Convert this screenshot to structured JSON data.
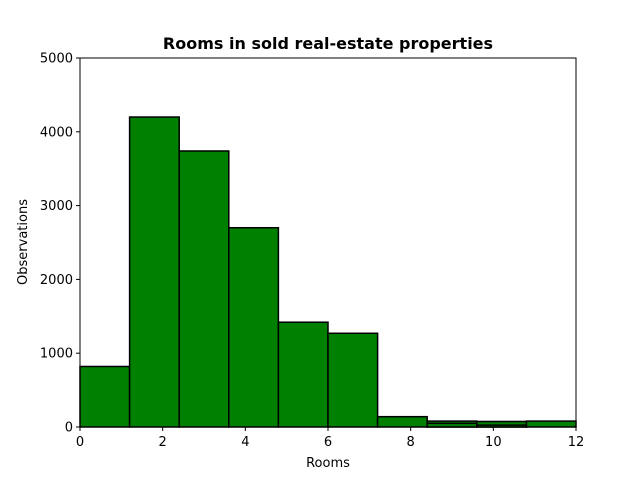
{
  "chart_data": {
    "type": "bar",
    "title": "Rooms in sold real-estate properties",
    "xlabel": "Rooms",
    "ylabel": "Observations",
    "xlim": [
      0,
      12
    ],
    "ylim": [
      0,
      5000
    ],
    "xticks": [
      0,
      2,
      4,
      6,
      8,
      10,
      12
    ],
    "yticks": [
      0,
      1000,
      2000,
      3000,
      4000,
      5000
    ],
    "grid": false,
    "bar_color": "#008000",
    "edge_color": "#000000",
    "bins": [
      {
        "x0": 0.0,
        "x1": 1.2,
        "value": 820
      },
      {
        "x0": 1.2,
        "x1": 2.4,
        "value": 4200
      },
      {
        "x0": 2.4,
        "x1": 3.6,
        "value": 3740
      },
      {
        "x0": 3.6,
        "x1": 4.8,
        "value": 2700
      },
      {
        "x0": 4.8,
        "x1": 6.0,
        "value": 1420
      },
      {
        "x0": 6.0,
        "x1": 7.2,
        "value": 1270
      },
      {
        "x0": 7.2,
        "x1": 8.4,
        "value": 140
      },
      {
        "x0": 8.4,
        "x1": 9.6,
        "value": 80
      },
      {
        "x0": 9.6,
        "x1": 10.8,
        "value": 75
      },
      {
        "x0": 10.8,
        "x1": 12.0,
        "value": 80
      }
    ],
    "overlay_bins": [
      {
        "x0": 8.4,
        "x1": 9.6,
        "value": 50
      },
      {
        "x0": 9.6,
        "x1": 10.8,
        "value": 25
      }
    ]
  }
}
